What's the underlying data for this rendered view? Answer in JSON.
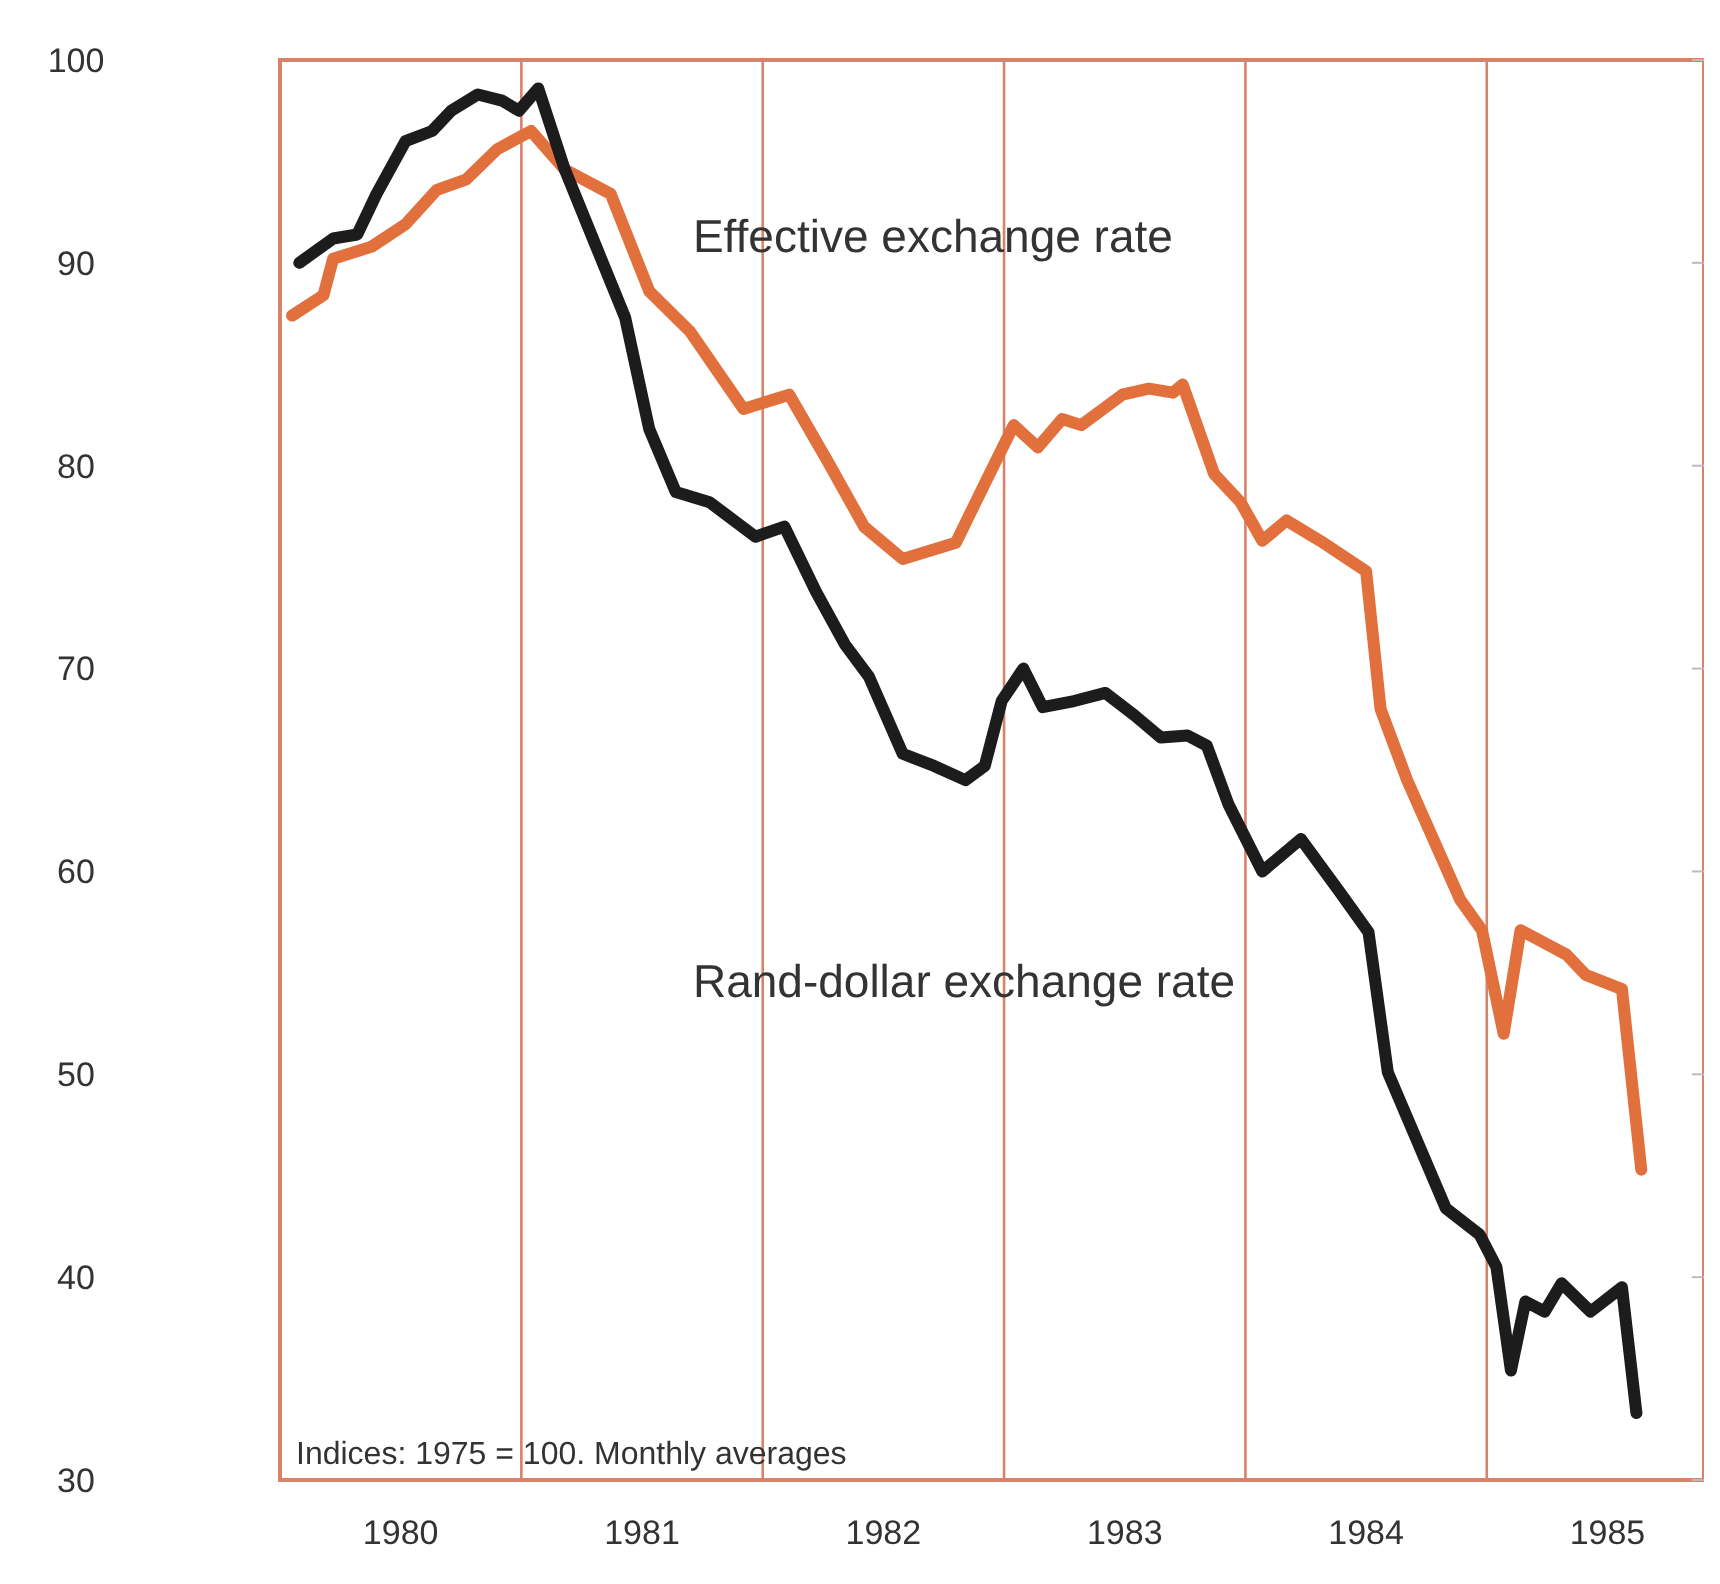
{
  "chart_data": {
    "type": "line",
    "annotations": [
      "Indices: 1975 = 100. Monthly averages"
    ],
    "xlim": [
      1980,
      1985.9
    ],
    "xticks": [
      {
        "value": 1980.5,
        "label": "1980"
      },
      {
        "value": 1981.5,
        "label": "1981"
      },
      {
        "value": 1982.5,
        "label": "1982"
      },
      {
        "value": 1983.5,
        "label": "1983"
      },
      {
        "value": 1984.5,
        "label": "1984"
      },
      {
        "value": 1985.5,
        "label": "1985"
      }
    ],
    "ylim": [
      30,
      100
    ],
    "yticks": [
      30,
      40,
      50,
      60,
      70,
      80,
      90,
      100
    ],
    "grid": false,
    "legend": false,
    "line_style": "solid",
    "ref_lines": [
      {
        "axis": "x",
        "value": 1981,
        "color": "#d9826a"
      },
      {
        "axis": "x",
        "value": 1982,
        "color": "#d9826a"
      },
      {
        "axis": "x",
        "value": 1983,
        "color": "#d9826a"
      },
      {
        "axis": "x",
        "value": 1984,
        "color": "#d9826a"
      },
      {
        "axis": "x",
        "value": 1985,
        "color": "#d9826a"
      }
    ],
    "series": [
      {
        "name": "Effective exchange rate",
        "color": "#e2703c",
        "x": [
          1980.05,
          1980.18,
          1980.22,
          1980.38,
          1980.52,
          1980.65,
          1980.77,
          1980.9,
          1981.04,
          1981.18,
          1981.37,
          1981.53,
          1981.7,
          1981.81,
          1981.92,
          1982.11,
          1982.27,
          1982.42,
          1982.58,
          1982.8,
          1982.94,
          1983.04,
          1983.14,
          1983.24,
          1983.32,
          1983.49,
          1983.6,
          1983.7,
          1983.74,
          1983.87,
          1983.98,
          1984.07,
          1984.17,
          1984.31,
          1984.5,
          1984.56,
          1984.67,
          1984.89,
          1984.98,
          1985.07,
          1985.14,
          1985.33,
          1985.41,
          1985.56,
          1985.64
        ],
        "values": [
          87.4,
          88.4,
          90.2,
          90.8,
          91.9,
          93.6,
          94.1,
          95.6,
          96.5,
          94.6,
          93.4,
          88.6,
          86.6,
          84.7,
          82.8,
          83.5,
          80.2,
          77.0,
          75.4,
          76.2,
          79.6,
          82.0,
          80.9,
          82.3,
          82.0,
          83.5,
          83.8,
          83.6,
          84.0,
          79.6,
          78.2,
          76.3,
          77.3,
          76.3,
          74.8,
          68.0,
          64.5,
          58.6,
          57.1,
          52.0,
          57.1,
          55.9,
          54.9,
          54.2,
          45.3
        ]
      },
      {
        "name": "Rand-dollar exchange rate",
        "color": "#1c1c1c",
        "x": [
          1980.08,
          1980.22,
          1980.32,
          1980.4,
          1980.52,
          1980.63,
          1980.71,
          1980.82,
          1980.92,
          1980.99,
          1981.07,
          1981.18,
          1981.31,
          1981.43,
          1981.53,
          1981.64,
          1981.78,
          1981.97,
          1982.09,
          1982.22,
          1982.34,
          1982.44,
          1982.58,
          1982.71,
          1982.84,
          1982.92,
          1982.99,
          1983.08,
          1983.16,
          1983.29,
          1983.42,
          1983.54,
          1983.65,
          1983.76,
          1983.84,
          1983.93,
          1984.07,
          1984.23,
          1984.39,
          1984.51,
          1984.59,
          1984.83,
          1984.97,
          1985.04,
          1985.1,
          1985.16,
          1985.24,
          1985.31,
          1985.43,
          1985.56,
          1985.62
        ],
        "values": [
          90.0,
          91.2,
          91.4,
          93.4,
          96.0,
          96.5,
          97.5,
          98.3,
          98.0,
          97.5,
          98.6,
          94.6,
          90.8,
          87.3,
          81.8,
          78.7,
          78.2,
          76.5,
          77.0,
          73.8,
          71.2,
          69.6,
          65.8,
          65.2,
          64.5,
          65.2,
          68.4,
          70.0,
          68.1,
          68.4,
          68.8,
          67.7,
          66.6,
          66.7,
          66.2,
          63.3,
          60.0,
          61.6,
          59.0,
          57.0,
          50.1,
          43.4,
          42.1,
          40.5,
          35.4,
          38.8,
          38.3,
          39.7,
          38.3,
          39.5,
          33.3
        ]
      }
    ]
  }
}
